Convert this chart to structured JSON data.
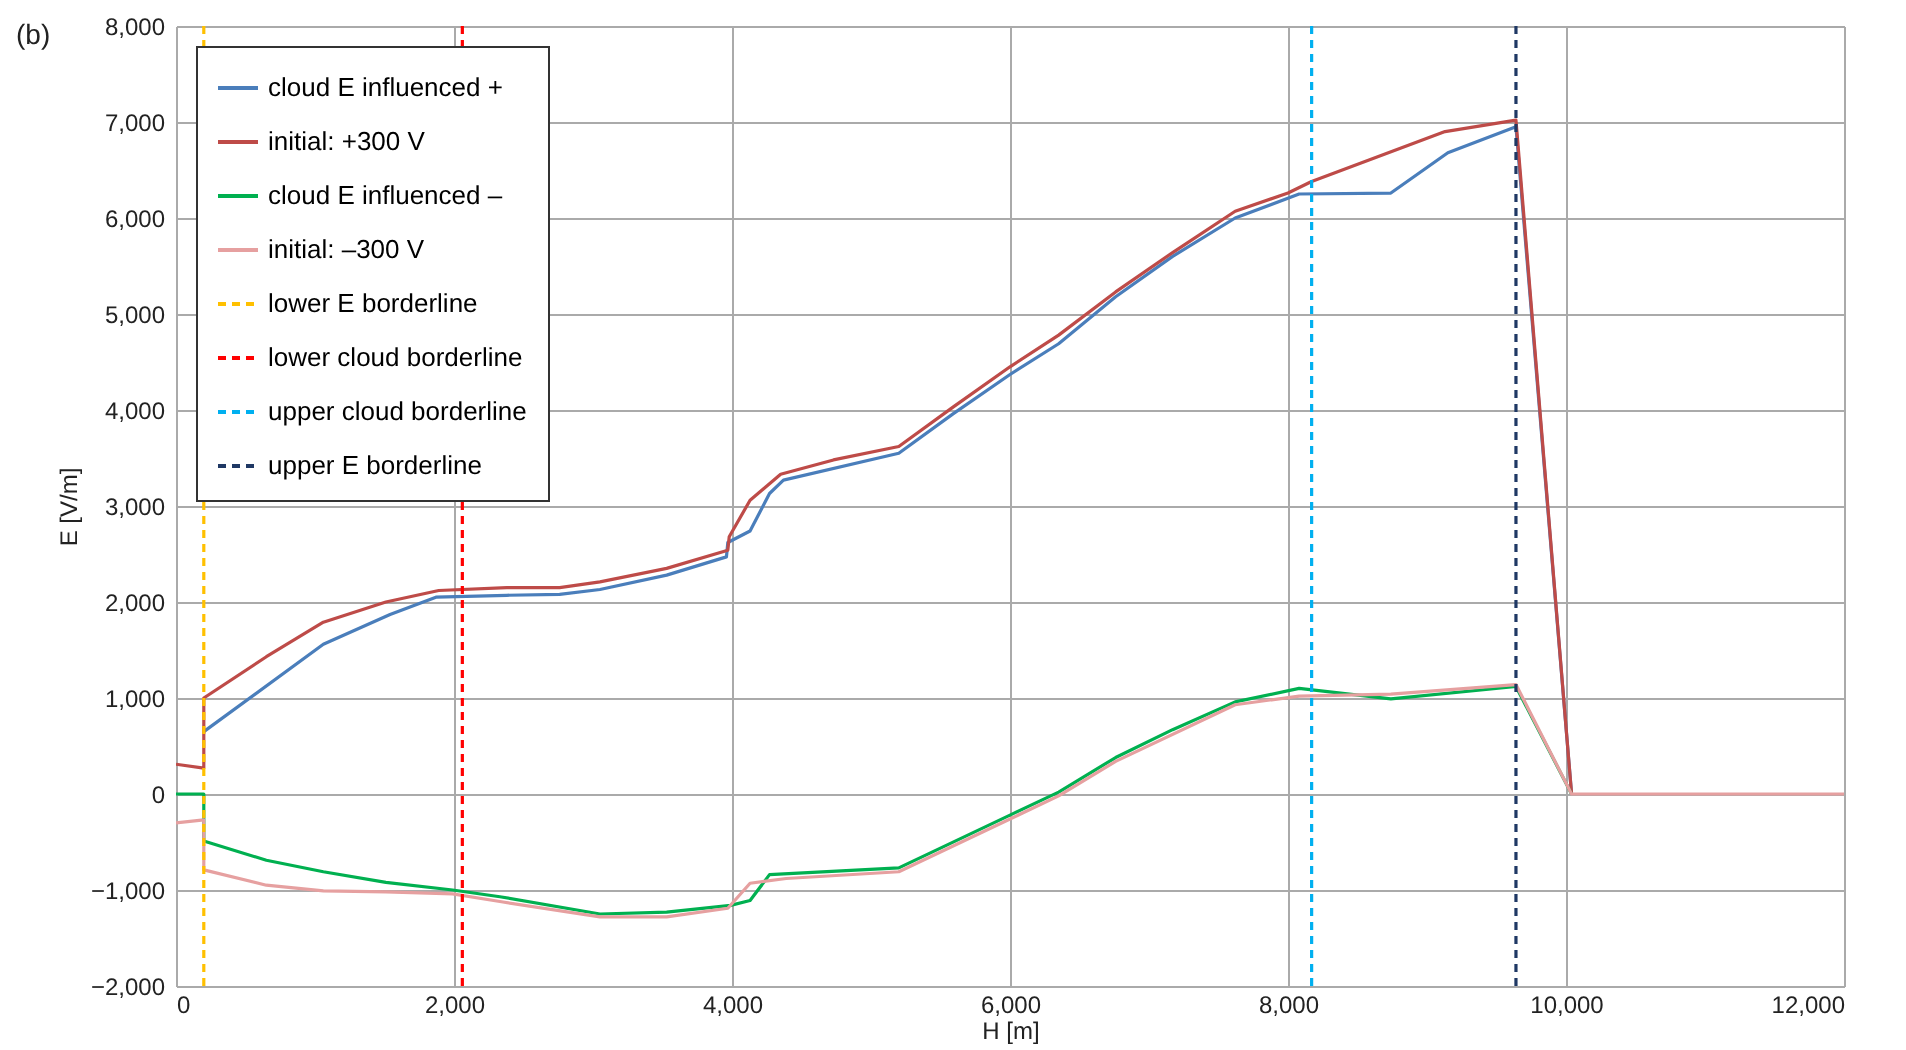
{
  "chart_data": {
    "type": "line",
    "xlabel": "H [m]",
    "ylabel": "E [V/m]",
    "annotations": [
      "(b)"
    ],
    "xlim": [
      0,
      12000
    ],
    "xticks": [
      0,
      {
        "value": 2000,
        "label": "2,000"
      },
      {
        "value": 4000,
        "label": "4,000"
      },
      {
        "value": 6000,
        "label": "6,000"
      },
      {
        "value": 8000,
        "label": "8,000"
      },
      {
        "value": 10000,
        "label": "10,000"
      },
      {
        "value": 12000,
        "label": "12,000"
      }
    ],
    "ylim": [
      -2000,
      8000
    ],
    "yticks": [
      {
        "value": -2000,
        "label": "−2,000"
      },
      {
        "value": -1000,
        "label": "−1,000"
      },
      0,
      {
        "value": 1000,
        "label": "1,000"
      },
      {
        "value": 2000,
        "label": "2,000"
      },
      {
        "value": 3000,
        "label": "3,000"
      },
      {
        "value": 4000,
        "label": "4,000"
      },
      {
        "value": 5000,
        "label": "5,000"
      },
      {
        "value": 6000,
        "label": "6,000"
      },
      {
        "value": 7000,
        "label": "7,000"
      },
      {
        "value": 8000,
        "label": "8,000"
      }
    ],
    "grid": true,
    "legend": "top left",
    "series": [
      {
        "name": "cloud E influenced +",
        "color": "#4a7ebb",
        "x": [
          200,
          1060,
          1540,
          1870,
          2380,
          2760,
          3050,
          3530,
          3960,
          3970,
          4130,
          4270,
          4370,
          5200,
          5590,
          6000,
          6350,
          6760,
          7170,
          7620,
          8080,
          8740,
          9150,
          9640,
          10040
        ],
        "values": [
          650,
          1560,
          1870,
          2050,
          2070,
          2080,
          2130,
          2280,
          2470,
          2620,
          2740,
          3130,
          3270,
          3550,
          3960,
          4370,
          4690,
          5180,
          5600,
          6000,
          6250,
          6260,
          6680,
          6950,
          0
        ]
      },
      {
        "name": "initial: +300 V",
        "color": "#be4b48",
        "x": [
          0,
          200,
          200,
          650,
          1060,
          1510,
          1890,
          2380,
          2760,
          3050,
          3530,
          3970,
          3980,
          4130,
          4350,
          4730,
          5200,
          5590,
          6000,
          6350,
          6760,
          7170,
          7620,
          8000,
          8170,
          9130,
          9640,
          10040
        ],
        "values": [
          310,
          270,
          1000,
          1430,
          1790,
          2000,
          2120,
          2150,
          2150,
          2210,
          2350,
          2540,
          2680,
          3060,
          3330,
          3480,
          3620,
          4030,
          4450,
          4780,
          5230,
          5640,
          6070,
          6260,
          6380,
          6900,
          7020,
          0
        ]
      },
      {
        "name": "cloud E influenced –",
        "color": "#00b050",
        "x": [
          0,
          200,
          200,
          650,
          1060,
          1510,
          1990,
          2330,
          3050,
          3530,
          3990,
          4130,
          4270,
          5200,
          6000,
          6350,
          6760,
          7170,
          7620,
          8080,
          8740,
          9640,
          10040
        ],
        "values": [
          0,
          0,
          -490,
          -690,
          -810,
          -920,
          -1000,
          -1070,
          -1250,
          -1230,
          -1160,
          -1110,
          -840,
          -770,
          -220,
          20,
          380,
          670,
          960,
          1100,
          990,
          1120,
          0
        ]
      },
      {
        "name": "initial: –300 V",
        "color": "#e6a0a0",
        "x": [
          0,
          200,
          200,
          650,
          1060,
          1510,
          1990,
          2330,
          3050,
          3530,
          3970,
          4130,
          4390,
          5200,
          6000,
          6350,
          6760,
          7620,
          8080,
          8740,
          9640,
          10040,
          12000
        ],
        "values": [
          -300,
          -270,
          -790,
          -950,
          -1010,
          -1020,
          -1040,
          -1120,
          -1280,
          -1280,
          -1190,
          -930,
          -880,
          -810,
          -260,
          -20,
          340,
          930,
          1020,
          1040,
          1140,
          0,
          0
        ]
      },
      {
        "name": "lower E borderline",
        "color": "#ffc000",
        "line_style": "dashed",
        "x": [
          200,
          200
        ],
        "values": [
          -2000,
          8000
        ]
      },
      {
        "name": "lower cloud borderline",
        "color": "#ff0000",
        "line_style": "dashed",
        "x": [
          2060,
          2060
        ],
        "values": [
          -2000,
          8000
        ]
      },
      {
        "name": "upper cloud borderline",
        "color": "#00b0f0",
        "line_style": "dashed",
        "x": [
          8170,
          8170
        ],
        "values": [
          -2000,
          8000
        ]
      },
      {
        "name": "upper E borderline",
        "color": "#1f3864",
        "line_style": "dashed",
        "x": [
          9640,
          9640
        ],
        "values": [
          -2000,
          8000
        ]
      }
    ]
  }
}
